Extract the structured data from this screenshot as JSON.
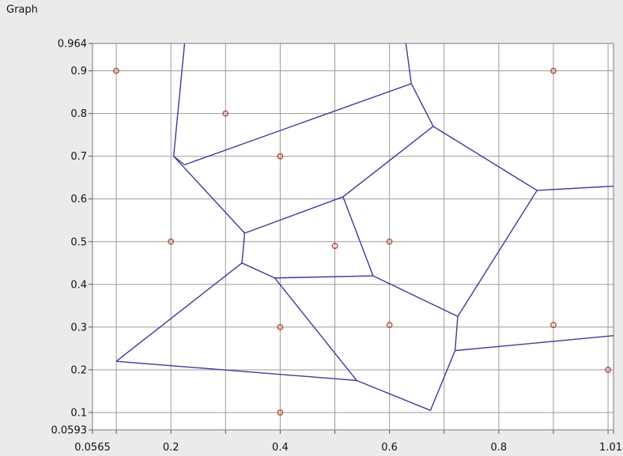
{
  "window": {
    "title": "Graph"
  },
  "chart_data": {
    "type": "scatter",
    "title": "",
    "xlabel": "",
    "ylabel": "",
    "xlim": [
      0.0565,
      1.01
    ],
    "ylim": [
      0.0593,
      0.964
    ],
    "grid": true,
    "x_ticks": [
      0.0565,
      0.1,
      0.2,
      0.3,
      0.4,
      0.5,
      0.6,
      0.7,
      0.8,
      0.9,
      1.0,
      1.01
    ],
    "x_tick_labels": [
      "0.0565",
      "",
      "0.2",
      "",
      "0.4",
      "",
      "0.6",
      "",
      "0.8",
      "",
      "",
      "1.01"
    ],
    "y_ticks": [
      0.0593,
      0.1,
      0.2,
      0.3,
      0.4,
      0.5,
      0.6,
      0.7,
      0.8,
      0.9,
      0.964
    ],
    "y_tick_labels": [
      "0.0593",
      "0.1",
      "0.2",
      "0.3",
      "0.4",
      "0.5",
      "0.6",
      "0.7",
      "0.8",
      "0.9",
      "0.964"
    ],
    "colors": {
      "points": "#b5483b",
      "edges": "#3b3b9a",
      "grid": "#9a9a9a",
      "plot_bg": "#ffffff"
    },
    "points": [
      {
        "x": 0.1,
        "y": 0.9
      },
      {
        "x": 0.3,
        "y": 0.8
      },
      {
        "x": 0.4,
        "y": 0.7
      },
      {
        "x": 0.9,
        "y": 0.9
      },
      {
        "x": 0.2,
        "y": 0.5
      },
      {
        "x": 0.5,
        "y": 0.49
      },
      {
        "x": 0.6,
        "y": 0.5
      },
      {
        "x": 0.4,
        "y": 0.3
      },
      {
        "x": 0.6,
        "y": 0.305
      },
      {
        "x": 0.9,
        "y": 0.305
      },
      {
        "x": 1.0,
        "y": 0.2
      },
      {
        "x": 0.4,
        "y": 0.1
      }
    ],
    "edges": [
      [
        0.225,
        0.964,
        0.205,
        0.7
      ],
      [
        0.205,
        0.7,
        0.225,
        0.68
      ],
      [
        0.225,
        0.68,
        0.64,
        0.87
      ],
      [
        0.63,
        0.964,
        0.64,
        0.87
      ],
      [
        0.64,
        0.87,
        0.68,
        0.77
      ],
      [
        0.68,
        0.77,
        0.515,
        0.605
      ],
      [
        0.68,
        0.77,
        0.87,
        0.62
      ],
      [
        0.87,
        0.62,
        1.01,
        0.63
      ],
      [
        0.87,
        0.62,
        0.725,
        0.325
      ],
      [
        0.205,
        0.7,
        0.335,
        0.52
      ],
      [
        0.335,
        0.52,
        0.515,
        0.605
      ],
      [
        0.335,
        0.52,
        0.33,
        0.45
      ],
      [
        0.515,
        0.605,
        0.57,
        0.42
      ],
      [
        0.33,
        0.45,
        0.39,
        0.415
      ],
      [
        0.39,
        0.415,
        0.57,
        0.42
      ],
      [
        0.57,
        0.42,
        0.725,
        0.325
      ],
      [
        0.725,
        0.325,
        0.72,
        0.245
      ],
      [
        0.72,
        0.245,
        1.01,
        0.28
      ],
      [
        0.72,
        0.245,
        0.675,
        0.105
      ],
      [
        0.675,
        0.105,
        0.54,
        0.175
      ],
      [
        0.39,
        0.415,
        0.54,
        0.175
      ],
      [
        0.54,
        0.175,
        0.1,
        0.22
      ],
      [
        0.1,
        0.22,
        0.33,
        0.45
      ]
    ]
  }
}
